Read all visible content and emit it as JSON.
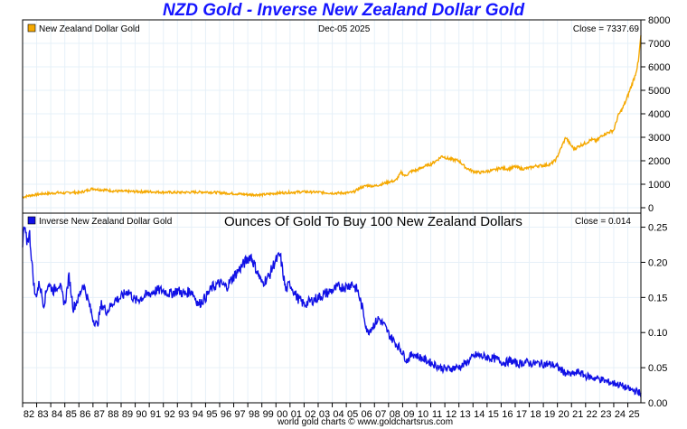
{
  "title": "NZD Gold - Inverse New Zealand Dollar Gold",
  "footer": "world gold charts © www.goldchartsrus.com",
  "colors": {
    "gold": "#f5a800",
    "inverse": "#1010e6",
    "title": "#1515ff",
    "grid": "#e6f0f8"
  },
  "chart_data": [
    {
      "type": "line",
      "name": "top-panel",
      "legend": "New Zealand Dollar Gold",
      "date": "Dec-05  2025",
      "close_label": "Close = 7337.69",
      "ylim": [
        0,
        8000
      ],
      "yticks": [
        "0",
        "1000",
        "2000",
        "3000",
        "4000",
        "5000",
        "6000",
        "7000",
        "8000"
      ],
      "ytick_values": [
        0,
        1000,
        2000,
        3000,
        4000,
        5000,
        6000,
        7000,
        8000
      ],
      "xlim": [
        1982.0,
        2025.93
      ],
      "x": [
        1982.0,
        1982.5,
        1983.0,
        1983.5,
        1984.0,
        1984.5,
        1985.0,
        1985.5,
        1986.0,
        1986.5,
        1987.0,
        1987.3,
        1987.8,
        1988.5,
        1989.0,
        1990.0,
        1991.0,
        1992.0,
        1993.0,
        1994.0,
        1995.0,
        1996.0,
        1997.0,
        1998.0,
        1999.0,
        1999.5,
        2000.0,
        2001.0,
        2002.0,
        2003.0,
        2004.0,
        2005.0,
        2005.5,
        2006.0,
        2006.5,
        2007.0,
        2007.5,
        2008.0,
        2008.5,
        2008.9,
        2009.2,
        2009.6,
        2010.0,
        2010.5,
        2011.0,
        2011.5,
        2011.8,
        2012.2,
        2012.6,
        2013.0,
        2013.5,
        2014.0,
        2014.5,
        2015.0,
        2015.5,
        2016.0,
        2016.5,
        2017.0,
        2017.5,
        2018.0,
        2018.5,
        2019.0,
        2019.5,
        2019.9,
        2020.3,
        2020.6,
        2020.9,
        2021.2,
        2021.6,
        2022.0,
        2022.4,
        2022.8,
        2023.2,
        2023.6,
        2024.0,
        2024.3,
        2024.6,
        2024.9,
        2025.2,
        2025.5,
        2025.75,
        2025.93
      ],
      "values": [
        450,
        520,
        560,
        600,
        610,
        640,
        620,
        660,
        640,
        720,
        820,
        780,
        760,
        710,
        700,
        690,
        680,
        660,
        650,
        660,
        670,
        640,
        600,
        560,
        550,
        580,
        620,
        650,
        680,
        660,
        620,
        630,
        660,
        850,
        950,
        920,
        1000,
        1100,
        1150,
        1500,
        1350,
        1550,
        1600,
        1750,
        1850,
        2050,
        2200,
        2100,
        2050,
        2000,
        1700,
        1550,
        1500,
        1550,
        1600,
        1700,
        1650,
        1750,
        1650,
        1700,
        1780,
        1800,
        1850,
        2050,
        2600,
        3000,
        2700,
        2500,
        2650,
        2750,
        2900,
        2850,
        3100,
        3200,
        3300,
        3900,
        4200,
        4600,
        5100,
        5600,
        6200,
        7337.69
      ]
    },
    {
      "type": "line",
      "name": "bottom-panel",
      "legend": "Inverse New Zealand Dollar Gold",
      "subtitle": "Ounces Of Gold To Buy 100 New Zealand Dollars",
      "close_label": "Close = 0.014",
      "ylim": [
        0,
        0.27
      ],
      "yticks": [
        "0.00",
        "0.05",
        "0.10",
        "0.15",
        "0.20",
        "0.25"
      ],
      "ytick_values": [
        0,
        0.05,
        0.1,
        0.15,
        0.2,
        0.25
      ],
      "xlim": [
        1982.0,
        2025.93
      ],
      "x": [
        1982.0,
        1982.1,
        1982.3,
        1982.5,
        1982.7,
        1982.9,
        1983.2,
        1983.5,
        1983.8,
        1984.2,
        1984.6,
        1985.0,
        1985.3,
        1985.6,
        1986.0,
        1986.3,
        1986.6,
        1987.0,
        1987.3,
        1987.6,
        1988.0,
        1988.5,
        1989.0,
        1989.5,
        1990.0,
        1990.5,
        1991.0,
        1991.5,
        1992.0,
        1992.5,
        1993.0,
        1993.5,
        1994.0,
        1994.5,
        1995.0,
        1995.5,
        1996.0,
        1996.5,
        1997.0,
        1997.4,
        1997.8,
        1998.2,
        1998.6,
        1999.0,
        1999.5,
        1999.9,
        2000.3,
        2000.7,
        2001.0,
        2001.5,
        2002.0,
        2002.5,
        2003.0,
        2003.5,
        2004.0,
        2004.5,
        2005.0,
        2005.4,
        2005.8,
        2006.2,
        2006.5,
        2006.9,
        2007.3,
        2007.7,
        2008.1,
        2008.5,
        2008.9,
        2009.3,
        2009.7,
        2010.2,
        2010.7,
        2011.2,
        2011.7,
        2012.2,
        2012.7,
        2013.2,
        2013.7,
        2014.2,
        2014.7,
        2015.2,
        2015.7,
        2016.2,
        2016.7,
        2017.2,
        2017.7,
        2018.2,
        2018.7,
        2019.2,
        2019.7,
        2020.2,
        2020.6,
        2021.0,
        2021.5,
        2022.0,
        2022.5,
        2023.0,
        2023.5,
        2024.0,
        2024.5,
        2025.0,
        2025.5,
        2025.93
      ],
      "values": [
        0.22,
        0.25,
        0.23,
        0.24,
        0.19,
        0.15,
        0.17,
        0.14,
        0.17,
        0.16,
        0.17,
        0.14,
        0.18,
        0.135,
        0.15,
        0.17,
        0.15,
        0.12,
        0.11,
        0.14,
        0.13,
        0.145,
        0.15,
        0.16,
        0.145,
        0.15,
        0.155,
        0.16,
        0.16,
        0.155,
        0.16,
        0.155,
        0.16,
        0.14,
        0.15,
        0.165,
        0.17,
        0.165,
        0.18,
        0.19,
        0.2,
        0.21,
        0.19,
        0.17,
        0.18,
        0.2,
        0.21,
        0.16,
        0.17,
        0.15,
        0.14,
        0.145,
        0.15,
        0.155,
        0.16,
        0.165,
        0.165,
        0.17,
        0.16,
        0.13,
        0.1,
        0.11,
        0.12,
        0.11,
        0.095,
        0.085,
        0.075,
        0.06,
        0.07,
        0.065,
        0.06,
        0.055,
        0.05,
        0.048,
        0.05,
        0.052,
        0.06,
        0.068,
        0.066,
        0.064,
        0.062,
        0.057,
        0.06,
        0.055,
        0.058,
        0.056,
        0.056,
        0.055,
        0.054,
        0.048,
        0.042,
        0.04,
        0.044,
        0.038,
        0.036,
        0.034,
        0.03,
        0.028,
        0.025,
        0.02,
        0.017,
        0.014
      ]
    }
  ],
  "xaxis": {
    "ticks": [
      "82",
      "83",
      "84",
      "85",
      "86",
      "87",
      "88",
      "89",
      "90",
      "91",
      "92",
      "93",
      "94",
      "95",
      "96",
      "97",
      "98",
      "99",
      "00",
      "01",
      "02",
      "03",
      "04",
      "05",
      "06",
      "07",
      "08",
      "09",
      "10",
      "11",
      "12",
      "13",
      "14",
      "15",
      "16",
      "17",
      "18",
      "19",
      "20",
      "21",
      "22",
      "23",
      "24",
      "25"
    ],
    "tick_years": [
      1982,
      1983,
      1984,
      1985,
      1986,
      1987,
      1988,
      1989,
      1990,
      1991,
      1992,
      1993,
      1994,
      1995,
      1996,
      1997,
      1998,
      1999,
      2000,
      2001,
      2002,
      2003,
      2004,
      2005,
      2006,
      2007,
      2008,
      2009,
      2010,
      2011,
      2012,
      2013,
      2014,
      2015,
      2016,
      2017,
      2018,
      2019,
      2020,
      2021,
      2022,
      2023,
      2024,
      2025
    ]
  }
}
